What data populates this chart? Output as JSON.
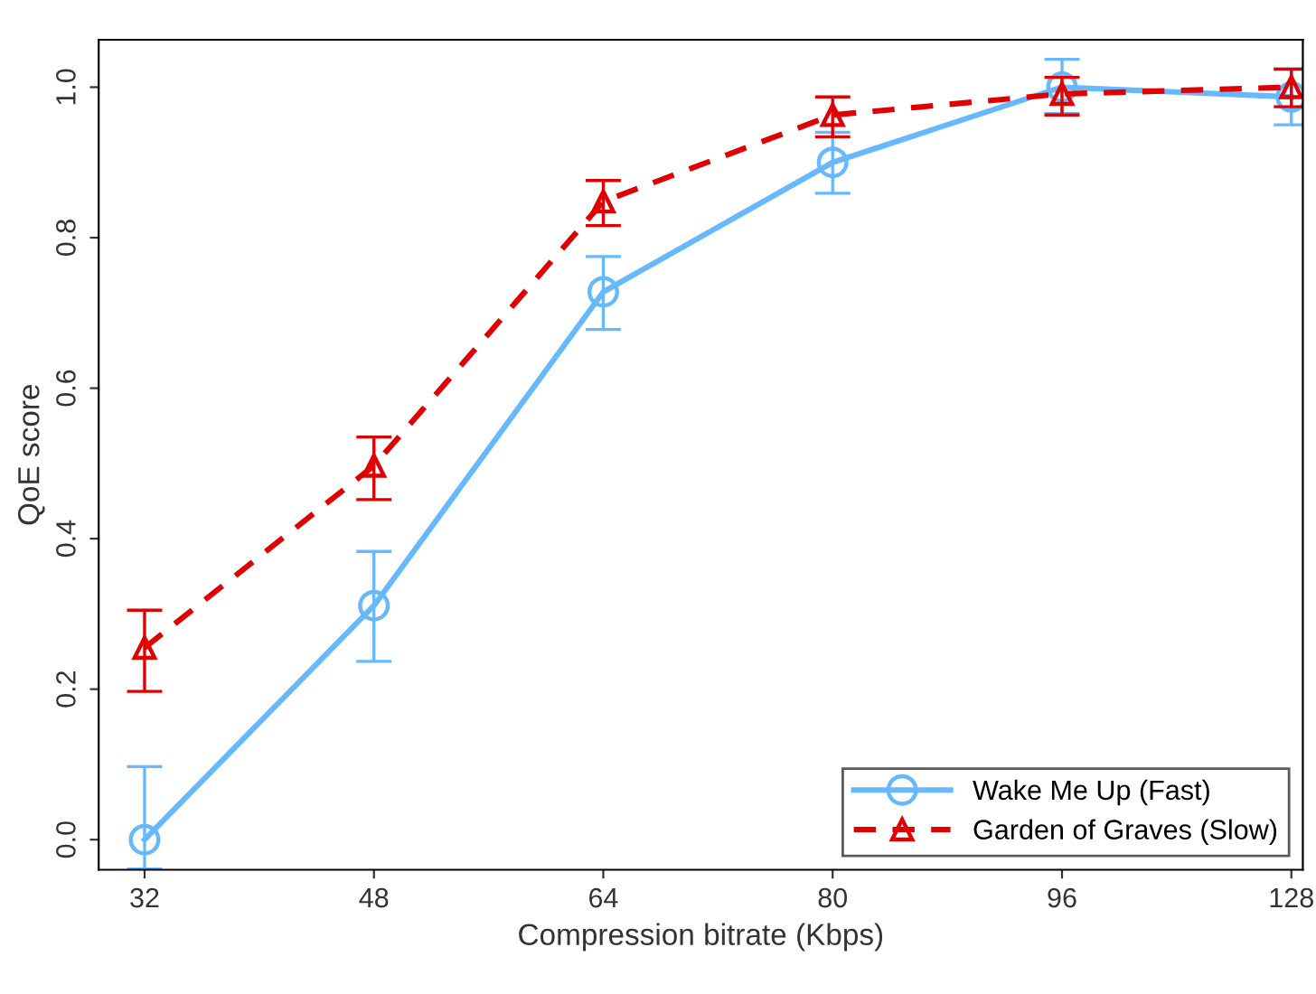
{
  "chart_data": {
    "type": "line",
    "xlabel": "Compression bitrate (Kbps)",
    "ylabel": "QoE score",
    "categories": [
      "32",
      "48",
      "64",
      "80",
      "96",
      "128"
    ],
    "series": [
      {
        "name": "Wake Me Up (Fast)",
        "color": "#66b8ff",
        "marker": "circle",
        "line_style": "solid",
        "values": [
          0.0,
          0.311,
          0.728,
          0.9,
          1.0,
          0.987
        ],
        "errors": [
          [
            -0.039,
            0.097
          ],
          [
            0.237,
            0.383
          ],
          [
            0.678,
            0.775
          ],
          [
            0.859,
            0.94
          ],
          [
            0.965,
            1.037
          ],
          [
            0.95,
            1.024
          ]
        ]
      },
      {
        "name": "Garden of Graves (Slow)",
        "color": "#e00000",
        "marker": "triangle",
        "line_style": "dashed",
        "values": [
          0.255,
          0.497,
          0.848,
          0.963,
          0.991,
          1.0
        ],
        "errors": [
          [
            0.197,
            0.305
          ],
          [
            0.452,
            0.535
          ],
          [
            0.816,
            0.876
          ],
          [
            0.934,
            0.987
          ],
          [
            0.963,
            1.013
          ],
          [
            0.974,
            1.024
          ]
        ]
      }
    ],
    "ylim": [
      -0.04,
      1.063
    ],
    "yticks": [
      {
        "value": 0,
        "label": "0.0"
      },
      0.2,
      0.4,
      0.6,
      0.8,
      {
        "value": 1,
        "label": "1.0"
      }
    ],
    "legend": "bottom right",
    "grid": false
  }
}
